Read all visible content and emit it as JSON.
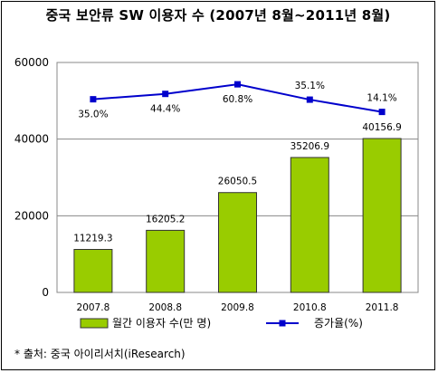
{
  "title": "중국 보안류 SW 이용자 수 (2007년 8월~2011년 8월)",
  "source": "* 출처: 중국 아이리서치(iResearch)",
  "colors": {
    "bar_fill": "#99cc00",
    "bar_stroke": "#333333",
    "line": "#0000cc",
    "marker": "#0000cc",
    "plot_border": "#888888",
    "grid": "#888888"
  },
  "chart_data": {
    "type": "bar",
    "categories": [
      "2007.8",
      "2008.8",
      "2009.8",
      "2010.8",
      "2011.8"
    ],
    "series": [
      {
        "name": "월간 이용자 수(만 명)",
        "type": "bar",
        "axis": "left",
        "values": [
          11219.3,
          16205.2,
          26050.5,
          35206.9,
          40156.9
        ],
        "labels": [
          "11219.3",
          "16205.2",
          "26050.5",
          "35206.9",
          "40156.9"
        ]
      },
      {
        "name": "증가율(%)",
        "type": "line",
        "axis": "secondary (unlabeled)",
        "values": [
          35.0,
          44.4,
          60.8,
          35.1,
          14.1
        ],
        "labels": [
          "35.0%",
          "44.4%",
          "60.8%",
          "35.1%",
          "14.1%"
        ],
        "plotted_level_on_left_axis": [
          50400,
          51800,
          54300,
          50300,
          47100
        ]
      }
    ],
    "ylim": [
      0,
      60000
    ],
    "yticks": [
      "0",
      "20000",
      "40000",
      "60000"
    ],
    "grid": true,
    "legend": "bottom"
  }
}
